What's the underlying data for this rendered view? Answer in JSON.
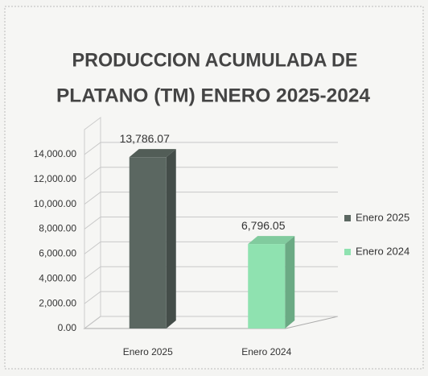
{
  "chart_data": {
    "type": "bar3d",
    "title": [
      "PRODUCCION  ACUMULADA DE",
      "PLATANO (TM) ENERO  2025-2024"
    ],
    "categories": [
      "Enero 2025",
      "Enero 2024"
    ],
    "series": [
      {
        "name": "Enero 2025",
        "color": "#5b6761",
        "values": [
          13786.07,
          null
        ],
        "value_labels": [
          "13,786.07",
          null
        ]
      },
      {
        "name": "Enero 2024",
        "color": "#8fe2b0",
        "values": [
          null,
          6796.05
        ],
        "value_labels": [
          null,
          "6,796.05"
        ]
      }
    ],
    "ylim": [
      0,
      16000
    ],
    "yticks": [
      {
        "value": 0,
        "label": "0.00"
      },
      {
        "value": 2000,
        "label": "2,000.00"
      },
      {
        "value": 4000,
        "label": "4,000.00"
      },
      {
        "value": 6000,
        "label": "6,000.00"
      },
      {
        "value": 8000,
        "label": "8,000.00"
      },
      {
        "value": 10000,
        "label": "10,000.00"
      },
      {
        "value": 12000,
        "label": "12,000.00"
      },
      {
        "value": 14000,
        "label": "14,000.00"
      }
    ],
    "grid": true,
    "legend": "right"
  }
}
